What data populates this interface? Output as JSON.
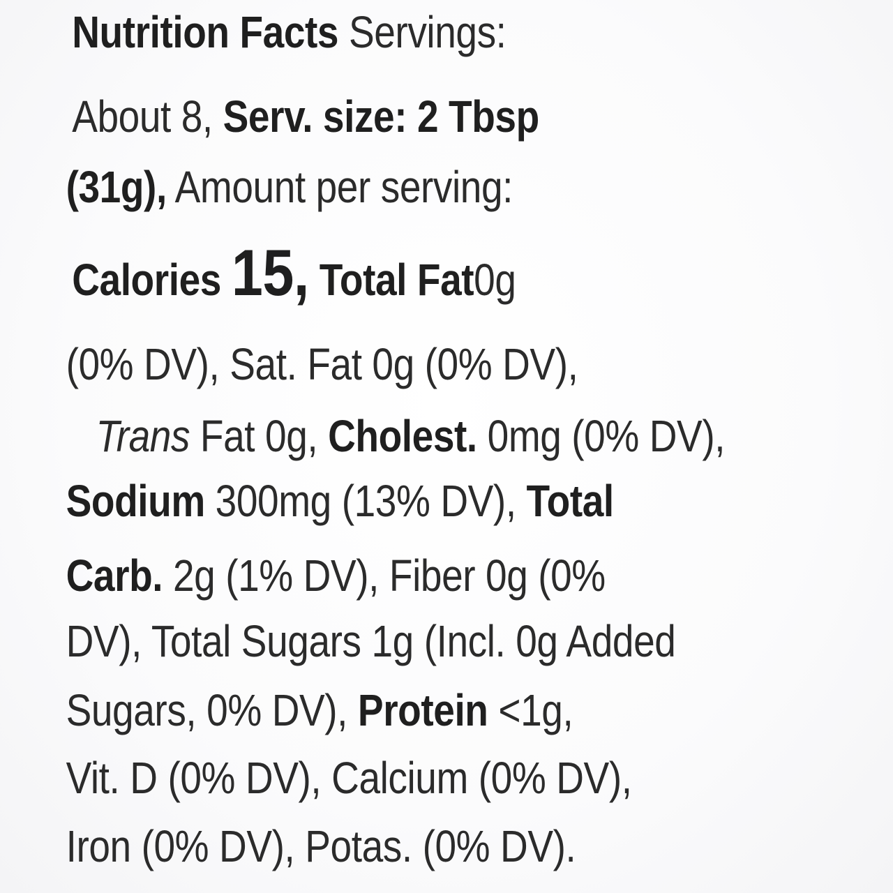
{
  "panel": {
    "title": "Nutrition Facts",
    "servings_label": "Servings:",
    "servings_value": "About 8,",
    "serving_size": "Serv. size: 2 Tbsp",
    "serving_grams": "(31g),",
    "amount_per_serving": "Amount per serving:",
    "calories_label": "Calories",
    "calories_value": "15,",
    "total_fat_label": "Total Fat",
    "total_fat_value": "0g",
    "total_fat_dv": "(0% DV),",
    "sat_fat": "Sat. Fat 0g (0% DV),",
    "trans_label": "Trans",
    "trans_fat": "Fat 0g,",
    "cholest_label": "Cholest.",
    "cholest_value": "0mg (0% DV),",
    "sodium_label": "Sodium",
    "sodium_value": "300mg (13% DV),",
    "total_label": "Total",
    "carb_label": "Carb.",
    "carb_value": "2g (1% DV), Fiber 0g (0%",
    "sugars_line": "DV), Total Sugars 1g (Incl. 0g Added",
    "added_sugars": "Sugars, 0% DV),",
    "protein_label": "Protein",
    "protein_value": "<1g,",
    "vitamins_line": "Vit. D (0% DV), Calcium (0% DV),",
    "minerals_line": "Iron (0% DV), Potas. (0% DV)."
  }
}
